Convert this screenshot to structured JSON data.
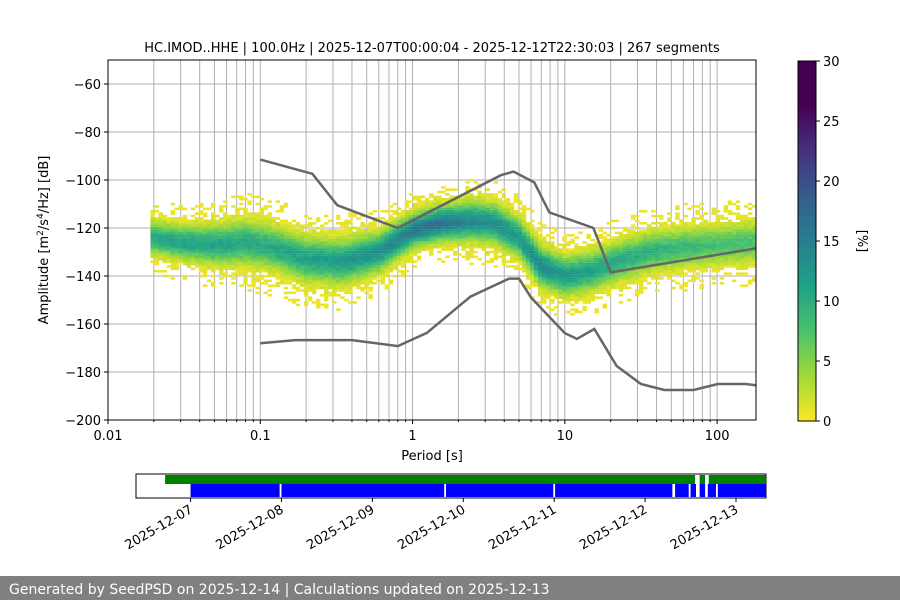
{
  "chart_data": {
    "type": "heatmap",
    "title": "HC.IMOD..HHE | 100.0Hz | 2025-12-07T00:00:04 - 2025-12-12T22:30:03 | 267 segments",
    "xlabel": "Period [s]",
    "ylabel_main": "Amplitude [m",
    "ylabel_sup1": "2",
    "ylabel_mid": "/s",
    "ylabel_sup2": "4",
    "ylabel_end": "/Hz] [dB]",
    "x_scale": "log",
    "xlim": [
      0.01,
      180
    ],
    "ylim": [
      -200,
      -50
    ],
    "x_ticks": [
      {
        "value": 0.01,
        "label": "0.01"
      },
      {
        "value": 0.1,
        "label": "0.1"
      },
      {
        "value": 1,
        "label": "1"
      },
      {
        "value": 10,
        "label": "10"
      },
      {
        "value": 100,
        "label": "100"
      }
    ],
    "y_ticks": [
      {
        "value": -60,
        "label": "−60"
      },
      {
        "value": -80,
        "label": "−80"
      },
      {
        "value": -100,
        "label": "−100"
      },
      {
        "value": -120,
        "label": "−120"
      },
      {
        "value": -140,
        "label": "−140"
      },
      {
        "value": -160,
        "label": "−160"
      },
      {
        "value": -180,
        "label": "−180"
      },
      {
        "value": -200,
        "label": "−200"
      }
    ],
    "grid": true,
    "colorbar": {
      "label": "[%]",
      "range": [
        0,
        30
      ],
      "colormap": "viridis_r",
      "ticks": [
        {
          "value": 0,
          "label": "0"
        },
        {
          "value": 5,
          "label": "5"
        },
        {
          "value": 10,
          "label": "10"
        },
        {
          "value": 15,
          "label": "15"
        },
        {
          "value": 20,
          "label": "20"
        },
        {
          "value": 25,
          "label": "25"
        },
        {
          "value": 30,
          "label": "30"
        }
      ]
    },
    "nhnm": {
      "name": "New High Noise Model",
      "x": [
        0.1,
        0.22,
        0.32,
        0.8,
        3.8,
        4.6,
        6.3,
        7.9,
        15.4,
        20,
        180
      ],
      "y": [
        -91.5,
        -97.4,
        -110.5,
        -120,
        -98,
        -96.5,
        -101,
        -113.5,
        -120,
        -138.5,
        -128.5
      ]
    },
    "nlnm": {
      "name": "New Low Noise Model",
      "x": [
        0.1,
        0.17,
        0.4,
        0.8,
        1.24,
        2.4,
        4.3,
        5,
        6,
        10,
        12,
        15.6,
        21.9,
        31.6,
        45,
        70,
        101,
        154,
        180
      ],
      "y": [
        -168,
        -166.7,
        -166.7,
        -169.2,
        -163.7,
        -148.6,
        -141.1,
        -141.1,
        -149,
        -163.8,
        -166.2,
        -162.1,
        -177.5,
        -185,
        -187.5,
        -187.5,
        -185,
        -185,
        -185.5
      ]
    },
    "ppsd_distribution": {
      "description": "probability density of PSD values per period bin",
      "x_range": [
        0.019,
        180
      ],
      "center_x": [
        0.02,
        0.03,
        0.05,
        0.08,
        0.12,
        0.2,
        0.35,
        0.6,
        1,
        1.5,
        2.5,
        3.5,
        5,
        7,
        10,
        15,
        22,
        35,
        60,
        100,
        180
      ],
      "center_y": [
        -124,
        -126,
        -127,
        -126,
        -128,
        -133,
        -134,
        -130,
        -121,
        -118,
        -117,
        -118,
        -124,
        -136,
        -140,
        -138,
        -134,
        -130,
        -128,
        -127,
        -126
      ],
      "spread_db": [
        7,
        7,
        8,
        9,
        9,
        9,
        9,
        8,
        7,
        7,
        8,
        8,
        8,
        8,
        8,
        8,
        8,
        8,
        8,
        8,
        8
      ],
      "peak_percent": [
        12,
        13,
        13,
        12,
        12,
        13,
        14,
        15,
        18,
        19,
        16,
        15,
        14,
        16,
        14,
        13,
        12,
        11,
        10,
        9,
        9
      ]
    },
    "coverage": {
      "x_ticks": [
        "2025-12-07",
        "2025-12-08",
        "2025-12-09",
        "2025-12-10",
        "2025-12-11",
        "2025-12-12",
        "2025-12-13"
      ],
      "xlim_days": [
        -0.6,
        6.33
      ],
      "processed_color": "#008000",
      "data_color": "#0000ff",
      "processed_spans": [
        [
          -0.28,
          5.55
        ],
        [
          5.6,
          5.66
        ],
        [
          5.7,
          6.5
        ]
      ],
      "data_spans": [
        [
          0.0,
          0.98
        ],
        [
          1.0,
          2.79
        ],
        [
          2.81,
          3.99
        ],
        [
          4.01,
          5.3
        ],
        [
          5.33,
          5.48
        ],
        [
          5.5,
          5.56
        ],
        [
          5.6,
          5.66
        ],
        [
          5.69,
          5.78
        ],
        [
          5.8,
          6.5
        ]
      ]
    },
    "colors": {
      "noise_model": "#666666",
      "grid": "#b0b0b0"
    }
  },
  "footer": {
    "text": "Generated by SeedPSD on 2025-12-14 | Calculations updated on 2025-12-13"
  }
}
